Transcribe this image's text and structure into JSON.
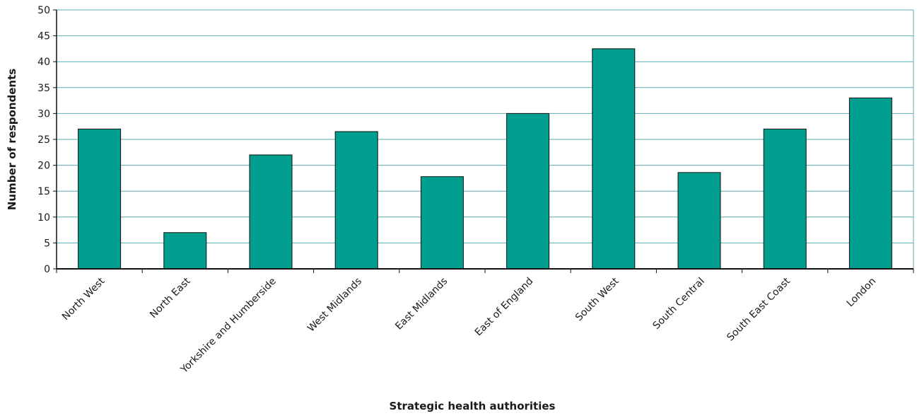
{
  "chart_data": {
    "type": "bar",
    "title": "",
    "xlabel": "Strategic health authorities",
    "ylabel": "Number of respondents",
    "categories": [
      "North West",
      "North East",
      "Yorkshire and Humberside",
      "West Midlands",
      "East Midlands",
      "East of England",
      "South West",
      "South Central",
      "South East Coast",
      "London"
    ],
    "values": [
      27,
      7,
      22,
      26.5,
      17.8,
      30,
      42.5,
      18.6,
      27,
      33
    ],
    "ylim": [
      0,
      50
    ],
    "yticks": [
      0,
      5,
      10,
      15,
      20,
      25,
      30,
      35,
      40,
      45,
      50
    ],
    "grid": true,
    "legend": "none",
    "colors": {
      "bar": "#009e8e",
      "bar_stroke": "#111111",
      "grid": "#5aaeb0",
      "axis": "#111111"
    }
  }
}
